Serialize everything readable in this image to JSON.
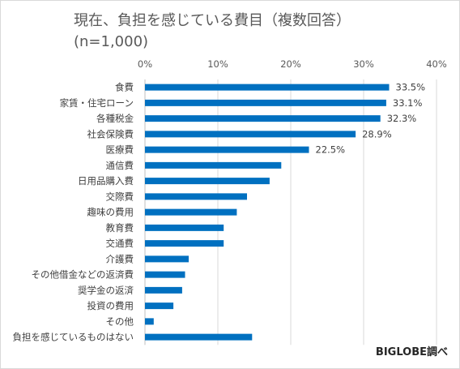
{
  "chart_data": {
    "type": "bar",
    "orientation": "horizontal",
    "title": "現在、負担を感じている費目（複数回答）",
    "subtitle": "(n=1,000)",
    "categories": [
      "食費",
      "家賃・住宅ローン",
      "各種税金",
      "社会保険費",
      "医療費",
      "通信費",
      "日用品購入費",
      "交際費",
      "趣味の費用",
      "教育費",
      "交通費",
      "介護費",
      "その他借金などの返済費",
      "奨学金の返済",
      "投資の費用",
      "その他",
      "負担を感じているものはない"
    ],
    "values": [
      33.5,
      33.1,
      32.3,
      28.9,
      22.5,
      18.7,
      17.1,
      14.0,
      12.6,
      10.8,
      10.8,
      6.0,
      5.5,
      5.1,
      3.9,
      1.2,
      14.7
    ],
    "data_labels": [
      "33.5%",
      "33.1%",
      "32.3%",
      "28.9%",
      "22.5%",
      "",
      "",
      "",
      "",
      "",
      "",
      "",
      "",
      "",
      "",
      "",
      ""
    ],
    "x_ticks": [
      "0%",
      "10%",
      "20%",
      "30%",
      "40%"
    ],
    "xlim": [
      0,
      40
    ],
    "axis_position": "top",
    "grid": true,
    "bar_color": "#0070c0",
    "grid_color": "#d9d9d9"
  },
  "source": "BIGLOBE調べ"
}
